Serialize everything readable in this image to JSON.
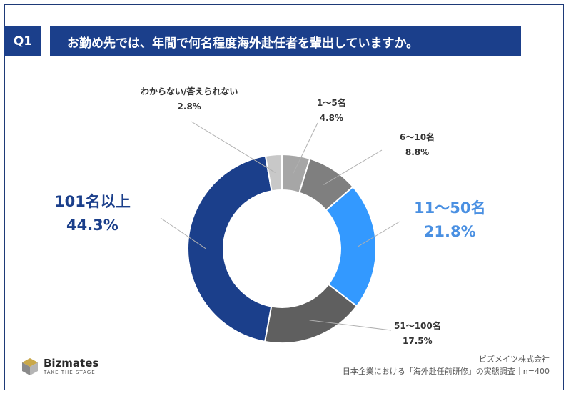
{
  "header": {
    "badge": "Q1",
    "question": "お勤め先では、年間で何名程度海外赴任者を輩出していますか。"
  },
  "chart_data": {
    "type": "pie",
    "donut": true,
    "title": "",
    "categories": [
      "1～5名",
      "6～10名",
      "11～50名",
      "51～100名",
      "101名以上",
      "わからない/答えられない"
    ],
    "values": [
      4.8,
      8.8,
      21.8,
      17.5,
      44.3,
      2.8
    ],
    "value_labels": [
      "4.8%",
      "8.8%",
      "21.8%",
      "17.5%",
      "44.3%",
      "2.8%"
    ],
    "colors": [
      "#a6a6a6",
      "#7f7f7f",
      "#3399ff",
      "#5f5f5f",
      "#1b3f8b",
      "#c8c8c8"
    ]
  },
  "footer": {
    "company": "ビズメイツ株式会社",
    "survey": "日本企業における「海外赴任前研修」の実態調査｜n=400"
  },
  "logo": {
    "name": "Bizmates",
    "tagline": "TAKE THE STAGE"
  }
}
